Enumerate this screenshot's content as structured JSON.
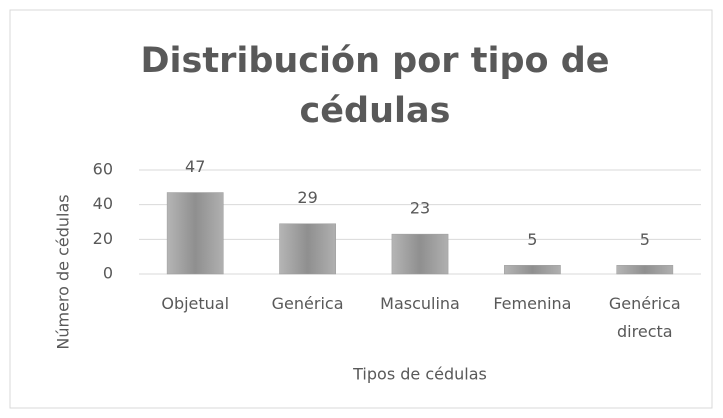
{
  "chart_data": {
    "type": "bar",
    "title": "Distribución por tipo de cédulas",
    "x_label": "Tipos de cédulas",
    "y_label": "Número de cédulas",
    "categories": [
      "Objetual",
      "Genérica",
      "Masculina",
      "Femenina",
      "Genérica directa"
    ],
    "values": [
      47,
      29,
      23,
      5,
      5
    ],
    "color": "#9a9a9a",
    "ylim": [
      0,
      60
    ],
    "yticks": [
      0,
      20,
      40,
      60
    ],
    "grid": true
  }
}
